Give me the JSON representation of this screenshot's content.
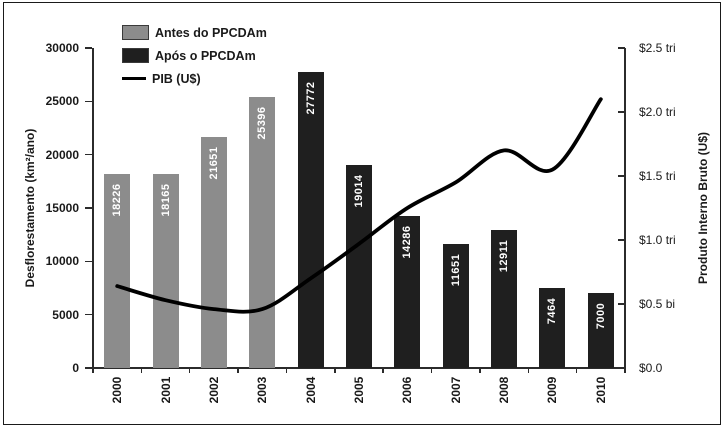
{
  "chart_data": {
    "type": "bar",
    "subtype": "bar-line-combo",
    "categories": [
      "2000",
      "2001",
      "2002",
      "2003",
      "2004",
      "2005",
      "2006",
      "2007",
      "2008",
      "2009",
      "2010"
    ],
    "series": [
      {
        "name": "Antes do PPCDAm",
        "type": "bar",
        "axis": "left",
        "color": "#8c8c8c",
        "values": [
          18226,
          18165,
          21651,
          25396,
          null,
          null,
          null,
          null,
          null,
          null,
          null
        ]
      },
      {
        "name": "Após o PPCDAm",
        "type": "bar",
        "axis": "left",
        "color": "#1f1f1f",
        "values": [
          null,
          null,
          null,
          null,
          27772,
          19014,
          14286,
          11651,
          12911,
          7464,
          7000
        ]
      },
      {
        "name": "PIB (U$)",
        "type": "line",
        "axis": "right",
        "color": "#000000",
        "values": [
          0.64,
          0.53,
          0.46,
          0.46,
          0.7,
          0.97,
          1.25,
          1.45,
          1.7,
          1.55,
          2.1
        ]
      }
    ],
    "left_axis": {
      "label": "Desflorestamento (km²/ano)",
      "min": 0,
      "max": 30000,
      "ticks": [
        {
          "value": 0,
          "label": "0"
        },
        {
          "value": 5000,
          "label": "5000"
        },
        {
          "value": 10000,
          "label": "10000"
        },
        {
          "value": 15000,
          "label": "15000"
        },
        {
          "value": 20000,
          "label": "20000"
        },
        {
          "value": 25000,
          "label": "25000"
        },
        {
          "value": 30000,
          "label": "30000"
        }
      ]
    },
    "right_axis": {
      "label": "Produto Interno Bruto (U$)",
      "min": 0,
      "max": 2.5,
      "ticks": [
        {
          "value": 0.0,
          "label": "$0.0"
        },
        {
          "value": 0.5,
          "label": "$0.5 bi"
        },
        {
          "value": 1.0,
          "label": "$1.0 tri"
        },
        {
          "value": 1.5,
          "label": "$1.5 tri"
        },
        {
          "value": 2.0,
          "label": "$2.0 tri"
        },
        {
          "value": 2.5,
          "label": "$2.5 tri"
        }
      ]
    },
    "legend_position": "top-left-inside",
    "grid": false,
    "bar_value_labels": true
  }
}
